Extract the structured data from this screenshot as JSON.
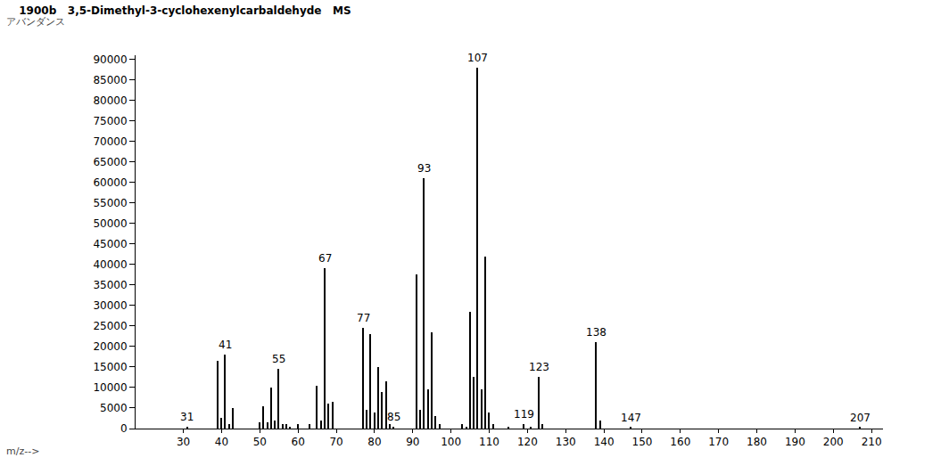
{
  "chart_data": {
    "type": "bar",
    "title": "1900b   3,5-Dimethyl-3-cyclohexenylcarbaldehyde   MS",
    "y_label": "アバンダンス",
    "x_label": "m/z-->",
    "color": "#000000",
    "x": [
      31,
      39,
      40,
      41,
      42,
      43,
      50,
      51,
      52,
      53,
      54,
      55,
      56,
      57,
      58,
      60,
      63,
      65,
      66,
      67,
      68,
      69,
      77,
      78,
      79,
      80,
      81,
      82,
      83,
      84,
      85,
      91,
      92,
      93,
      94,
      95,
      96,
      97,
      103,
      104,
      105,
      106,
      107,
      108,
      109,
      110,
      111,
      115,
      119,
      121,
      123,
      124,
      138,
      139,
      147,
      207
    ],
    "values": [
      500,
      16500,
      2500,
      18000,
      1000,
      5000,
      1500,
      5500,
      1500,
      10000,
      2000,
      14500,
      1000,
      1000,
      500,
      1000,
      1000,
      10500,
      2000,
      39000,
      6000,
      6500,
      24500,
      4500,
      23000,
      4000,
      15000,
      9000,
      11500,
      1000,
      500,
      37500,
      4500,
      61000,
      9500,
      23500,
      3000,
      1000,
      1000,
      500,
      28500,
      12500,
      88000,
      9500,
      42000,
      4000,
      1000,
      500,
      1000,
      500,
      12500,
      1000,
      21000,
      2000,
      300,
      300
    ],
    "annotations": [
      {
        "x": 31,
        "text": "31"
      },
      {
        "x": 41,
        "text": "41"
      },
      {
        "x": 55,
        "text": "55"
      },
      {
        "x": 67,
        "text": "67"
      },
      {
        "x": 77,
        "text": "77"
      },
      {
        "x": 85,
        "text": "85"
      },
      {
        "x": 93,
        "text": "93"
      },
      {
        "x": 107,
        "text": "107"
      },
      {
        "x": 119,
        "text": "119"
      },
      {
        "x": 123,
        "text": "123"
      },
      {
        "x": 138,
        "text": "138"
      },
      {
        "x": 147,
        "text": "147"
      },
      {
        "x": 207,
        "text": "207"
      }
    ],
    "xlim": [
      17.5,
      213
    ],
    "xticks": [
      30,
      40,
      50,
      60,
      70,
      80,
      90,
      100,
      110,
      120,
      130,
      140,
      150,
      160,
      170,
      180,
      190,
      200,
      210
    ],
    "ylim": [
      0,
      91000
    ],
    "yticks": [
      0,
      5000,
      10000,
      15000,
      20000,
      25000,
      30000,
      35000,
      40000,
      45000,
      50000,
      55000,
      60000,
      65000,
      70000,
      75000,
      80000,
      85000,
      90000
    ],
    "grid": false
  }
}
